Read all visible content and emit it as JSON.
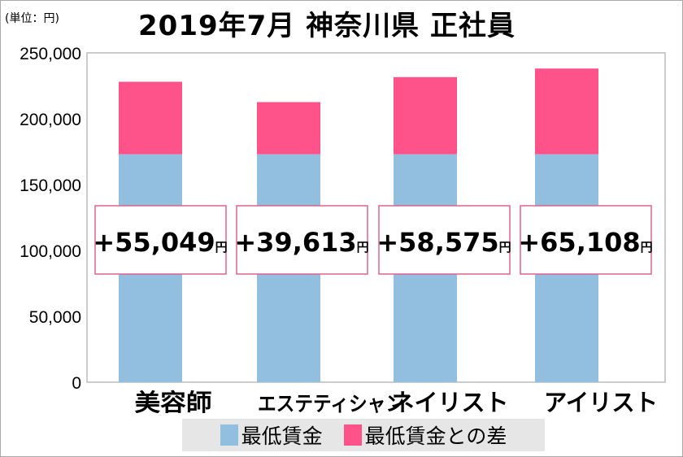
{
  "chart_data": {
    "type": "bar",
    "stacked": true,
    "title": "2019年7月 神奈川県 正社員",
    "unit_label": "(単位：円)",
    "categories": [
      "美容師",
      "エステティシャン",
      "ネイリスト",
      "アイリスト"
    ],
    "series": [
      {
        "name": "最低賃金",
        "color": "#92bfe0",
        "values": [
          173008,
          173008,
          173008,
          173008
        ]
      },
      {
        "name": "最低賃金との差",
        "color": "#fe528a",
        "values": [
          55049,
          39613,
          58575,
          65108
        ]
      }
    ],
    "annotations": [
      "+55,049",
      "+39,613",
      "+58,575",
      "+65,108"
    ],
    "annotation_unit": "円",
    "ylim": [
      0,
      250000
    ],
    "yticks": [
      0,
      50000,
      100000,
      150000,
      200000,
      250000
    ],
    "ytick_labels": [
      "0",
      "50,000",
      "100,000",
      "150,000",
      "200,000",
      "250,000"
    ],
    "grid": false,
    "legend_placement": "bottom"
  }
}
